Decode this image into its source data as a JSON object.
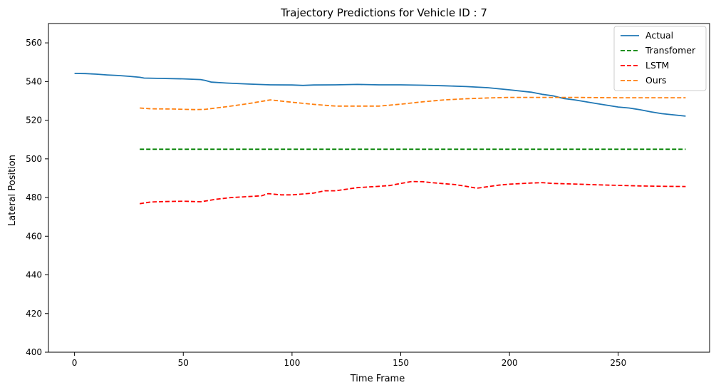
{
  "chart_data": {
    "type": "line",
    "title": "Trajectory Predictions for Vehicle ID : 7",
    "xlabel": "Time Frame",
    "ylabel": "Lateral Position",
    "xlim": [
      -12,
      292
    ],
    "ylim": [
      400,
      570
    ],
    "xticks": [
      0,
      50,
      100,
      150,
      200,
      250
    ],
    "yticks": [
      400,
      420,
      440,
      460,
      480,
      500,
      520,
      540,
      560
    ],
    "grid": false,
    "legend_position": "top-right",
    "series": [
      {
        "name": "Actual",
        "color": "#1f77b4",
        "dash": "solid",
        "points": [
          [
            0,
            544.2
          ],
          [
            5,
            544.1
          ],
          [
            10,
            543.8
          ],
          [
            15,
            543.4
          ],
          [
            20,
            543.1
          ],
          [
            25,
            542.7
          ],
          [
            30,
            542.2
          ],
          [
            32,
            541.8
          ],
          [
            40,
            541.6
          ],
          [
            50,
            541.4
          ],
          [
            58,
            541.0
          ],
          [
            60,
            540.6
          ],
          [
            63,
            539.7
          ],
          [
            70,
            539.2
          ],
          [
            80,
            538.7
          ],
          [
            90,
            538.3
          ],
          [
            100,
            538.2
          ],
          [
            105,
            538.0
          ],
          [
            110,
            538.2
          ],
          [
            120,
            538.3
          ],
          [
            130,
            538.5
          ],
          [
            140,
            538.3
          ],
          [
            150,
            538.3
          ],
          [
            160,
            538.1
          ],
          [
            170,
            537.8
          ],
          [
            180,
            537.4
          ],
          [
            190,
            536.8
          ],
          [
            200,
            535.7
          ],
          [
            210,
            534.5
          ],
          [
            215,
            533.4
          ],
          [
            220,
            532.6
          ],
          [
            225,
            531.2
          ],
          [
            230,
            530.5
          ],
          [
            240,
            528.6
          ],
          [
            250,
            526.8
          ],
          [
            255,
            526.3
          ],
          [
            260,
            525.4
          ],
          [
            265,
            524.3
          ],
          [
            270,
            523.4
          ],
          [
            281,
            522.1
          ]
        ]
      },
      {
        "name": "Transfomer",
        "color": "#008000",
        "dash": "dashed",
        "points": [
          [
            30,
            505
          ],
          [
            281,
            505
          ]
        ]
      },
      {
        "name": "LSTM",
        "color": "#ff0000",
        "dash": "dashed",
        "points": [
          [
            30,
            476.8
          ],
          [
            35,
            477.7
          ],
          [
            40,
            477.9
          ],
          [
            50,
            478.1
          ],
          [
            58,
            477.8
          ],
          [
            65,
            479.1
          ],
          [
            72,
            480.0
          ],
          [
            80,
            480.5
          ],
          [
            86,
            480.9
          ],
          [
            89,
            482.0
          ],
          [
            95,
            481.4
          ],
          [
            100,
            481.4
          ],
          [
            110,
            482.3
          ],
          [
            115,
            483.5
          ],
          [
            120,
            483.5
          ],
          [
            130,
            485.1
          ],
          [
            140,
            485.8
          ],
          [
            145,
            486.2
          ],
          [
            150,
            487.3
          ],
          [
            155,
            488.3
          ],
          [
            160,
            488.2
          ],
          [
            165,
            487.6
          ],
          [
            175,
            486.7
          ],
          [
            180,
            485.8
          ],
          [
            185,
            484.8
          ],
          [
            195,
            486.4
          ],
          [
            200,
            486.9
          ],
          [
            210,
            487.5
          ],
          [
            215,
            487.7
          ],
          [
            220,
            487.3
          ],
          [
            230,
            487.0
          ],
          [
            240,
            486.6
          ],
          [
            250,
            486.3
          ],
          [
            260,
            486.0
          ],
          [
            270,
            485.8
          ],
          [
            281,
            485.7
          ]
        ]
      },
      {
        "name": "Ours",
        "color": "#ff7f0e",
        "dash": "dashed",
        "points": [
          [
            30,
            526.3
          ],
          [
            35,
            525.9
          ],
          [
            45,
            525.8
          ],
          [
            55,
            525.5
          ],
          [
            60,
            525.6
          ],
          [
            70,
            527.0
          ],
          [
            80,
            528.6
          ],
          [
            90,
            530.5
          ],
          [
            100,
            529.3
          ],
          [
            110,
            528.2
          ],
          [
            120,
            527.3
          ],
          [
            130,
            527.3
          ],
          [
            140,
            527.3
          ],
          [
            150,
            528.3
          ],
          [
            160,
            529.5
          ],
          [
            170,
            530.5
          ],
          [
            180,
            531.1
          ],
          [
            190,
            531.5
          ],
          [
            200,
            531.8
          ],
          [
            210,
            531.8
          ],
          [
            220,
            531.8
          ],
          [
            230,
            531.8
          ],
          [
            240,
            531.7
          ],
          [
            250,
            531.6
          ],
          [
            260,
            531.6
          ],
          [
            270,
            531.6
          ],
          [
            281,
            531.6
          ]
        ]
      }
    ]
  }
}
